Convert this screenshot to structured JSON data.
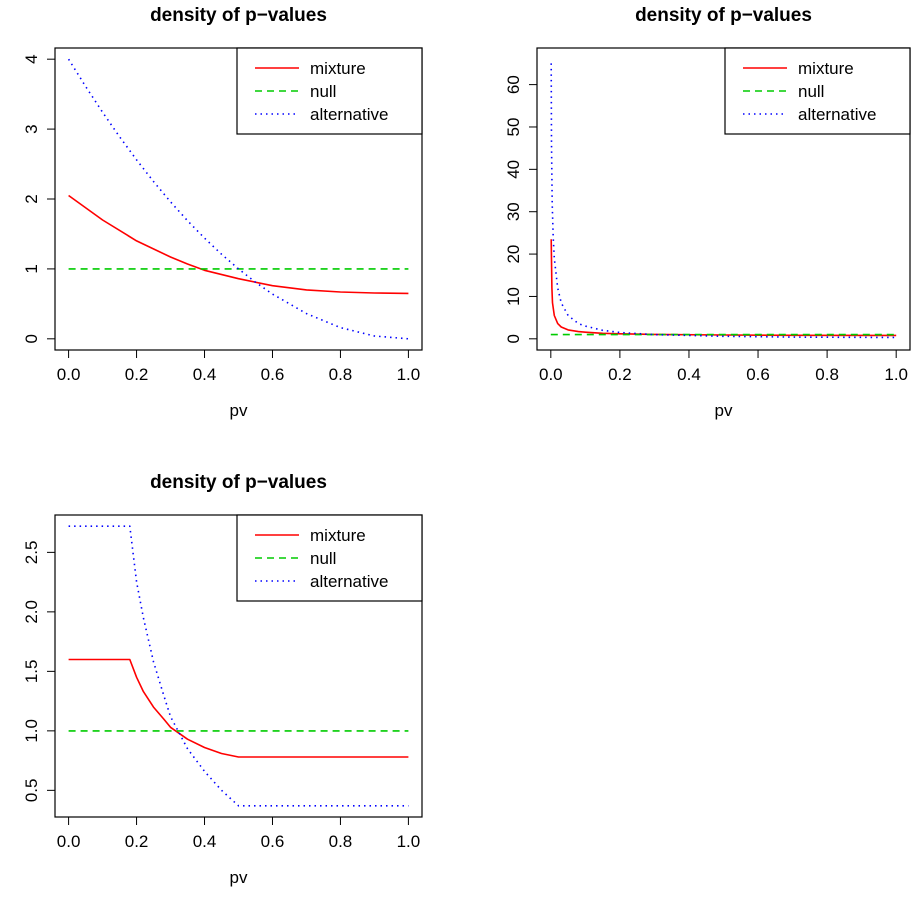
{
  "chart_data": [
    {
      "type": "line",
      "title": "density of p−values",
      "xlabel": "pv",
      "ylabel": "",
      "xlim": [
        0,
        1
      ],
      "ylim": [
        0,
        4
      ],
      "x_ticks": [
        "0.0",
        "0.2",
        "0.4",
        "0.6",
        "0.8",
        "1.0"
      ],
      "y_ticks": [
        "0",
        "1",
        "2",
        "3",
        "4"
      ],
      "legend": {
        "position": "top-right",
        "entries": [
          "mixture",
          "null",
          "alternative"
        ]
      },
      "series": [
        {
          "name": "mixture",
          "color": "#ff0000",
          "dash": "solid",
          "x": [
            0,
            0.1,
            0.2,
            0.3,
            0.35,
            0.4,
            0.5,
            0.6,
            0.7,
            0.8,
            0.9,
            1.0
          ],
          "y": [
            2.05,
            1.7,
            1.4,
            1.17,
            1.07,
            0.98,
            0.86,
            0.76,
            0.7,
            0.67,
            0.655,
            0.65
          ]
        },
        {
          "name": "null",
          "color": "#00cc00",
          "dash": "dashed",
          "x": [
            0,
            1
          ],
          "y": [
            1,
            1
          ]
        },
        {
          "name": "alternative",
          "color": "#0000ff",
          "dash": "dotted",
          "x": [
            0,
            0.05,
            0.1,
            0.15,
            0.2,
            0.25,
            0.3,
            0.35,
            0.4,
            0.45,
            0.5,
            0.55,
            0.6,
            0.7,
            0.8,
            0.9,
            1.0
          ],
          "y": [
            4.0,
            3.61,
            3.24,
            2.89,
            2.56,
            2.25,
            1.96,
            1.69,
            1.44,
            1.21,
            1.0,
            0.81,
            0.64,
            0.36,
            0.16,
            0.04,
            0.0
          ]
        }
      ]
    },
    {
      "type": "line",
      "title": "density of p−values",
      "xlabel": "pv",
      "ylabel": "",
      "xlim": [
        0,
        1
      ],
      "ylim": [
        0,
        66
      ],
      "x_ticks": [
        "0.0",
        "0.2",
        "0.4",
        "0.6",
        "0.8",
        "1.0"
      ],
      "y_ticks": [
        "0",
        "10",
        "20",
        "30",
        "40",
        "50",
        "60"
      ],
      "legend": {
        "position": "top-right",
        "entries": [
          "mixture",
          "null",
          "alternative"
        ]
      },
      "series": [
        {
          "name": "mixture",
          "color": "#ff0000",
          "dash": "solid",
          "x": [
            0.001,
            0.003,
            0.005,
            0.01,
            0.02,
            0.03,
            0.05,
            0.08,
            0.1,
            0.15,
            0.2,
            0.3,
            0.5,
            0.7,
            1.0
          ],
          "y": [
            23.5,
            12.0,
            8.5,
            5.5,
            3.6,
            2.8,
            2.1,
            1.7,
            1.55,
            1.3,
            1.18,
            1.05,
            0.9,
            0.84,
            0.8
          ]
        },
        {
          "name": "null",
          "color": "#00cc00",
          "dash": "dashed",
          "x": [
            0,
            1
          ],
          "y": [
            1,
            1
          ]
        },
        {
          "name": "alternative",
          "color": "#0000ff",
          "dash": "dotted",
          "x": [
            0.001,
            0.002,
            0.004,
            0.007,
            0.01,
            0.02,
            0.03,
            0.05,
            0.08,
            0.1,
            0.15,
            0.2,
            0.3,
            0.5,
            0.7,
            1.0
          ],
          "y": [
            65.0,
            46.0,
            32.0,
            24.0,
            19.0,
            12.0,
            8.5,
            5.5,
            3.6,
            3.0,
            2.0,
            1.5,
            1.0,
            0.6,
            0.4,
            0.3
          ]
        }
      ]
    },
    {
      "type": "line",
      "title": "density of p−values",
      "xlabel": "pv",
      "ylabel": "",
      "xlim": [
        0,
        1
      ],
      "ylim": [
        0.37,
        2.72
      ],
      "x_ticks": [
        "0.0",
        "0.2",
        "0.4",
        "0.6",
        "0.8",
        "1.0"
      ],
      "y_ticks": [
        "0.5",
        "1.0",
        "1.5",
        "2.0",
        "2.5"
      ],
      "legend": {
        "position": "top-right",
        "entries": [
          "mixture",
          "null",
          "alternative"
        ]
      },
      "series": [
        {
          "name": "mixture",
          "color": "#ff0000",
          "dash": "solid",
          "x": [
            0,
            0.18,
            0.2,
            0.22,
            0.25,
            0.28,
            0.3,
            0.35,
            0.4,
            0.45,
            0.5,
            0.6,
            0.8,
            1.0
          ],
          "y": [
            1.6,
            1.6,
            1.45,
            1.33,
            1.2,
            1.1,
            1.03,
            0.93,
            0.86,
            0.81,
            0.78,
            0.78,
            0.78,
            0.78
          ]
        },
        {
          "name": "null",
          "color": "#00cc00",
          "dash": "dashed",
          "x": [
            0,
            1
          ],
          "y": [
            1,
            1
          ]
        },
        {
          "name": "alternative",
          "color": "#0000ff",
          "dash": "dotted",
          "x": [
            0,
            0.18,
            0.2,
            0.22,
            0.25,
            0.28,
            0.3,
            0.35,
            0.4,
            0.45,
            0.5,
            0.6,
            0.8,
            1.0
          ],
          "y": [
            2.72,
            2.72,
            2.25,
            1.95,
            1.58,
            1.3,
            1.12,
            0.85,
            0.66,
            0.5,
            0.37,
            0.37,
            0.37,
            0.37
          ]
        }
      ]
    }
  ]
}
